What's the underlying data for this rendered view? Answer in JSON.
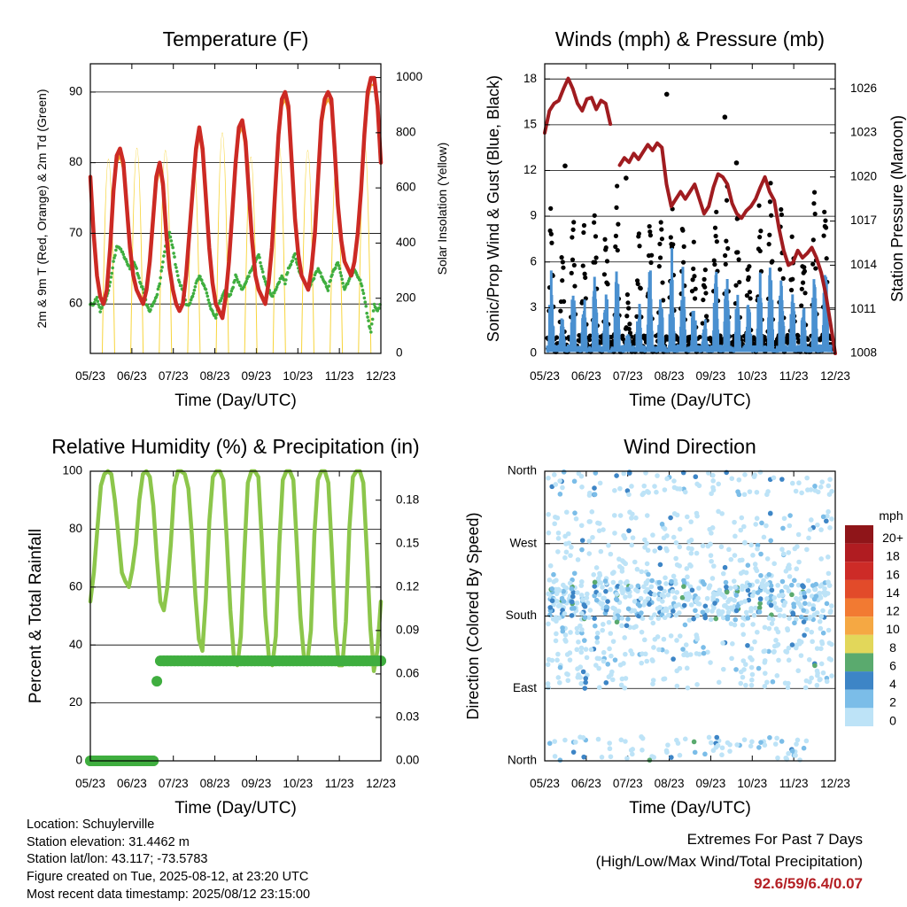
{
  "x_tick_labels": [
    "05/23",
    "06/23",
    "07/23",
    "08/23",
    "09/23",
    "10/23",
    "11/23",
    "12/23"
  ],
  "chart_data": [
    {
      "type": "line",
      "title": "Temperature (F)",
      "xlabel": "Time (Day/UTC)",
      "ylabel": "2m & 9m T (Red, Orange) & 2m Td (Green)",
      "ylabel_right": "Solar Insolation (Yellow)",
      "ylim": [
        53,
        94
      ],
      "ylim_right": [
        0,
        1050
      ],
      "yticks": [
        60,
        70,
        80,
        90
      ],
      "yticks_right": [
        0,
        200,
        400,
        600,
        800,
        1000
      ],
      "grid": true,
      "series": [
        {
          "name": "2m T",
          "color": "#cc2a24",
          "values": [
            78,
            70,
            64,
            61,
            60,
            62,
            68,
            76,
            81,
            82,
            80,
            74,
            68,
            64,
            62,
            61,
            60,
            62,
            66,
            72,
            78,
            80,
            77,
            70,
            65,
            62,
            60,
            59,
            60,
            64,
            70,
            76,
            82,
            85,
            82,
            75,
            68,
            63,
            60,
            59,
            58,
            61,
            66,
            73,
            80,
            85,
            86,
            83,
            76,
            69,
            64,
            62,
            61,
            60,
            63,
            68,
            76,
            84,
            89,
            90,
            88,
            80,
            72,
            67,
            64,
            63,
            62,
            65,
            70,
            78,
            86,
            89,
            90,
            89,
            82,
            74,
            69,
            66,
            65,
            64,
            66,
            70,
            76,
            84,
            90,
            92,
            92,
            88,
            80
          ]
        },
        {
          "name": "9m T",
          "color": "#f0a02a",
          "values": [
            77,
            70,
            64,
            61,
            60,
            62,
            68,
            76,
            80,
            81,
            79,
            74,
            68,
            64,
            62,
            61,
            60,
            62,
            66,
            72,
            77,
            79,
            76,
            70,
            65,
            62,
            60,
            59,
            60,
            64,
            70,
            76,
            81,
            84,
            81,
            75,
            68,
            63,
            60,
            59,
            58,
            61,
            66,
            73,
            79,
            84,
            85,
            82,
            76,
            69,
            64,
            62,
            61,
            60,
            63,
            68,
            76,
            83,
            88,
            89,
            87,
            80,
            72,
            67,
            64,
            63,
            62,
            65,
            70,
            78,
            85,
            88,
            89,
            88,
            82,
            74,
            69,
            66,
            65,
            64,
            66,
            70,
            76,
            84,
            89,
            91,
            91,
            87,
            80
          ]
        },
        {
          "name": "2m Td",
          "color": "#3fae3f",
          "values": [
            60,
            60,
            61,
            59,
            60,
            61,
            63,
            66,
            68,
            68,
            67,
            66,
            65,
            66,
            65,
            63,
            62,
            60,
            59,
            60,
            61,
            63,
            66,
            69,
            70,
            68,
            65,
            63,
            62,
            60,
            60,
            61,
            63,
            64,
            63,
            62,
            60,
            59,
            58,
            60,
            61,
            62,
            61,
            62,
            64,
            63,
            62,
            63,
            64,
            65,
            66,
            67,
            65,
            63,
            62,
            61,
            62,
            63,
            64,
            63,
            65,
            66,
            67,
            65,
            64,
            63,
            62,
            63,
            64,
            65,
            64,
            63,
            62,
            64,
            65,
            66,
            64,
            62,
            63,
            64,
            65,
            64,
            63,
            61,
            58,
            56,
            60,
            59,
            60
          ]
        }
      ],
      "solar_series": {
        "name": "Solar Insolation",
        "color": "#f7d43a",
        "daily_peaks": [
          880,
          930,
          920,
          870,
          1000,
          890,
          940,
          920,
          860,
          950
        ]
      }
    },
    {
      "type": "scatter",
      "title": "Winds (mph) & Pressure (mb)",
      "xlabel": "Time (Day/UTC)",
      "ylabel": "Sonic/Prop Wind & Gust (Blue, Black)",
      "ylabel_right": "Station Pressure (Maroon)",
      "ylim": [
        0,
        19
      ],
      "ylim_right": [
        1008,
        1027.7
      ],
      "yticks": [
        0,
        3,
        6,
        9,
        12,
        15,
        18
      ],
      "yticks_right": [
        1008,
        1011,
        1014,
        1017,
        1020,
        1023,
        1026
      ],
      "grid": true,
      "series": [
        {
          "name": "Sonic/Prop Wind",
          "color": "#4a90d0",
          "daily_peaks": [
            5,
            2,
            4,
            3,
            5,
            4,
            6,
            1,
            3,
            5,
            4,
            6,
            5,
            3,
            2,
            5,
            6,
            4,
            3,
            5,
            6,
            5,
            4,
            3,
            5,
            6
          ]
        },
        {
          "name": "Gust",
          "color": "#000000",
          "daily_peaks": [
            10,
            6,
            8,
            7,
            9,
            8,
            10,
            3,
            7,
            9,
            9,
            10,
            8,
            6,
            5,
            10,
            10,
            8,
            6,
            9,
            10,
            9,
            7,
            6,
            9,
            11
          ],
          "outliers": [
            [
              0.07,
              12.3
            ],
            [
              0.28,
              11.5
            ],
            [
              0.42,
              17.0
            ],
            [
              0.62,
              15.5
            ],
            [
              0.66,
              12.5
            ]
          ]
        },
        {
          "name": "Station Pressure",
          "color": "#a01c20",
          "values": [
            1023.0,
            1024.5,
            1025.0,
            1025.2,
            1026.0,
            1026.7,
            1026.0,
            1025.0,
            1024.5,
            1025.3,
            1025.4,
            1024.6,
            1025.2,
            1025.0,
            1023.6,
            null,
            1020.8,
            1021.3,
            1021.0,
            1021.6,
            1021.2,
            1021.7,
            1022.2,
            1021.8,
            1022.3,
            1022.0,
            1019.5,
            1018.0,
            1018.5,
            1019.0,
            1018.5,
            1019.0,
            1019.5,
            1018.5,
            1017.5,
            1018.0,
            1019.3,
            1020.2,
            1020.0,
            1019.5,
            1018.2,
            1017.5,
            1017.2,
            1017.7,
            1018.0,
            1018.5,
            1019.3,
            1020.0,
            1019.0,
            1018.4,
            1016.5,
            1015.0,
            1014.0,
            1014.2,
            1015.0,
            1014.5,
            1014.8,
            1015.2,
            1014.5,
            1013.5,
            1012.0,
            1010.0,
            1008.0
          ]
        }
      ]
    },
    {
      "type": "line",
      "title": "Relative Humidity (%) & Precipitation (in)",
      "xlabel": "Time (Day/UTC)",
      "ylabel": "Percent & Total Rainfall",
      "ylim": [
        0,
        100
      ],
      "ylim_right": [
        0,
        0.2
      ],
      "yticks": [
        0,
        20,
        40,
        60,
        80,
        100
      ],
      "yticks_right": [
        "0.00",
        "0.03",
        "0.06",
        "0.09",
        "0.12",
        "0.15",
        "0.18"
      ],
      "grid": true,
      "series": [
        {
          "name": "Relative Humidity",
          "color": "#8cc64b",
          "values": [
            55,
            65,
            80,
            95,
            99,
            100,
            99,
            90,
            78,
            65,
            62,
            60,
            66,
            75,
            90,
            99,
            100,
            98,
            88,
            70,
            55,
            52,
            60,
            75,
            95,
            100,
            100,
            99,
            94,
            78,
            57,
            42,
            38,
            56,
            83,
            98,
            100,
            100,
            97,
            76,
            52,
            36,
            33,
            43,
            72,
            96,
            100,
            100,
            98,
            76,
            50,
            36,
            33,
            43,
            75,
            97,
            100,
            100,
            97,
            74,
            50,
            36,
            34,
            45,
            78,
            97,
            100,
            100,
            96,
            72,
            46,
            33,
            33,
            48,
            80,
            98,
            100,
            100,
            96,
            72,
            46,
            31,
            38,
            55
          ]
        },
        {
          "name": "Total Precipitation",
          "color": "#3fae3f",
          "values": [
            0,
            0,
            0,
            0,
            0,
            0,
            0,
            0,
            0,
            0,
            0,
            0,
            0,
            0,
            0,
            0,
            0,
            0,
            0,
            0.055,
            0.069,
            0.069,
            0.069,
            0.069,
            0.069,
            0.069,
            0.069,
            0.069,
            0.069,
            0.069,
            0.069,
            0.069,
            0.069,
            0.069,
            0.069,
            0.069,
            0.069,
            0.069,
            0.069,
            0.069,
            0.069,
            0.069,
            0.069,
            0.069,
            0.069,
            0.069,
            0.069,
            0.069,
            0.069,
            0.069,
            0.069,
            0.069,
            0.069,
            0.069,
            0.069,
            0.069,
            0.069,
            0.069,
            0.069,
            0.069,
            0.069,
            0.069,
            0.069,
            0.069,
            0.069,
            0.069,
            0.069,
            0.069,
            0.069,
            0.069,
            0.069,
            0.069,
            0.069,
            0.069,
            0.069,
            0.069,
            0.069,
            0.069,
            0.069,
            0.069,
            0.069,
            0.069,
            0.069,
            0.069
          ]
        }
      ]
    },
    {
      "type": "scatter",
      "title": "Wind Direction",
      "xlabel": "Time (Day/UTC)",
      "ylabel": "Direction (Colored By Speed)",
      "ytick_labels": [
        "North",
        "East",
        "South",
        "West",
        "North"
      ],
      "ylim": [
        0,
        360
      ],
      "grid": true,
      "dominant_direction_deg": 200,
      "speed_legend": {
        "title": "mph",
        "labels": [
          "0",
          "2",
          "4",
          "6",
          "8",
          "10",
          "12",
          "14",
          "16",
          "18",
          "20+"
        ],
        "colors": [
          "#bde3f7",
          "#7bbde8",
          "#3d85c6",
          "#5aaa6e",
          "#e2d75a",
          "#f5a843",
          "#f27a32",
          "#e24b2a",
          "#cd2b27",
          "#b01c21",
          "#8f1519"
        ]
      }
    }
  ],
  "info": {
    "location": "Location: Schuylerville",
    "elevation": "Station elevation: 31.4462 m",
    "latlon": "Station lat/lon: 43.117; -73.5783",
    "created": "Figure created on Tue, 2025-08-12, at 23:20 UTC",
    "recent": "Most recent data timestamp: 2025/08/12 23:15:00",
    "extremes_title": "Extremes For Past 7 Days",
    "extremes_subtitle": "(High/Low/Max Wind/Total Precipitation)",
    "extremes_values": "92.6/59/6.4/0.07"
  }
}
